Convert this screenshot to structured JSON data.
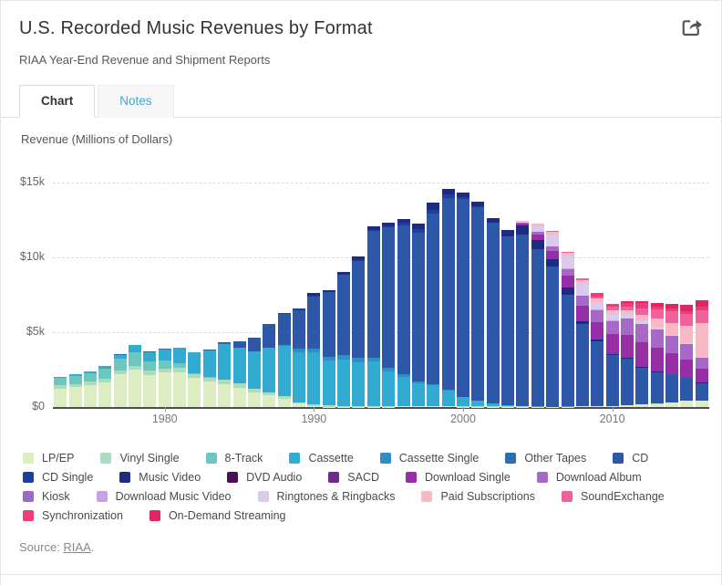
{
  "header": {
    "title": "U.S. Recorded Music Revenues by Format",
    "subtitle": "RIAA Year-End Revenue and Shipment Reports"
  },
  "tabs": [
    {
      "label": "Chart",
      "active": true
    },
    {
      "label": "Notes",
      "active": false
    }
  ],
  "icons": {
    "share": "share-export-arrow"
  },
  "axis": {
    "y_title": "Revenue (Millions of Dollars)",
    "y_ticks": [
      {
        "label": "$15k",
        "value": 15000
      },
      {
        "label": "$10k",
        "value": 10000
      },
      {
        "label": "$5k",
        "value": 5000
      },
      {
        "label": "$0",
        "value": 0
      }
    ],
    "x_ticks": [
      1980,
      1990,
      2000,
      2010
    ]
  },
  "chart_data": {
    "type": "bar",
    "stacked": true,
    "title": "U.S. Recorded Music Revenues by Format",
    "ylabel": "Revenue (Millions of Dollars)",
    "ylim": [
      0,
      15000
    ],
    "grid": "horizontal-dashed",
    "legend_position": "bottom",
    "x": [
      1973,
      1974,
      1975,
      1976,
      1977,
      1978,
      1979,
      1980,
      1981,
      1982,
      1983,
      1984,
      1985,
      1986,
      1987,
      1988,
      1989,
      1990,
      1991,
      1992,
      1993,
      1994,
      1995,
      1996,
      1997,
      1998,
      1999,
      2000,
      2001,
      2002,
      2003,
      2004,
      2005,
      2006,
      2007,
      2008,
      2009,
      2010,
      2011,
      2012,
      2013,
      2014,
      2015,
      2016
    ],
    "series": [
      {
        "name": "LP/EP",
        "color": "#dcedc1",
        "values": [
          1246,
          1356,
          1485,
          1663,
          2195,
          2473,
          2136,
          2290,
          2342,
          1925,
          1689,
          1549,
          1281,
          983,
          793,
          532,
          220,
          86,
          29,
          14,
          11,
          18,
          25,
          37,
          33,
          34,
          32,
          28,
          27,
          21,
          22,
          19,
          14,
          16,
          23,
          57,
          60,
          89,
          119,
          163,
          211,
          315,
          422,
          430
        ]
      },
      {
        "name": "Vinyl Single",
        "color": "#aadcc0",
        "values": [
          190,
          194,
          212,
          245,
          245,
          260,
          275,
          269,
          256,
          283,
          269,
          299,
          281,
          228,
          203,
          180,
          116,
          94,
          64,
          66,
          51,
          47,
          47,
          48,
          36,
          26,
          28,
          26,
          31,
          25,
          22,
          19,
          13,
          11,
          7,
          5,
          3,
          2,
          3,
          3,
          4,
          6,
          6,
          5
        ]
      },
      {
        "name": "8-Track",
        "color": "#6cc7c0",
        "values": [
          489,
          549,
          583,
          678,
          811,
          948,
          670,
          526,
          309,
          49,
          28,
          6,
          0,
          0,
          0,
          0,
          0,
          0,
          0,
          0,
          0,
          0,
          0,
          0,
          0,
          0,
          0,
          0,
          0,
          0,
          0,
          0,
          0,
          0,
          0,
          0,
          0,
          0,
          0,
          0,
          0,
          0,
          0,
          0
        ]
      },
      {
        "name": "Cassette",
        "color": "#32abd2",
        "values": [
          76,
          87,
          99,
          146,
          250,
          450,
          605,
          776,
          1063,
          1385,
          1811,
          2384,
          2412,
          2500,
          2960,
          3385,
          3346,
          3472,
          3020,
          3116,
          2916,
          2976,
          2304,
          1905,
          1523,
          1420,
          1062,
          626,
          363,
          210,
          108,
          24,
          13,
          4,
          3,
          1,
          0,
          0,
          0,
          0,
          0,
          0,
          0,
          0
        ]
      },
      {
        "name": "Cassette Single",
        "color": "#2f8fc4",
        "values": [
          0,
          0,
          0,
          0,
          0,
          0,
          0,
          0,
          0,
          0,
          0,
          0,
          0,
          0,
          14,
          57,
          195,
          258,
          230,
          299,
          299,
          275,
          236,
          189,
          133,
          62,
          48,
          13,
          6,
          5,
          0,
          0,
          0,
          0,
          0,
          0,
          0,
          0,
          0,
          0,
          0,
          0,
          0,
          0
        ]
      },
      {
        "name": "Other Tapes",
        "color": "#2c6fae",
        "values": [
          10,
          12,
          13,
          15,
          18,
          20,
          15,
          14,
          13,
          10,
          8,
          6,
          5,
          4,
          4,
          5,
          4,
          4,
          0,
          0,
          0,
          0,
          0,
          0,
          0,
          0,
          0,
          0,
          0,
          0,
          0,
          0,
          0,
          0,
          0,
          0,
          0,
          0,
          0,
          0,
          0,
          0,
          0,
          0
        ]
      },
      {
        "name": "CD",
        "color": "#2d57a7",
        "values": [
          0,
          0,
          0,
          0,
          0,
          0,
          0,
          0,
          0,
          0,
          17,
          103,
          390,
          930,
          1594,
          2090,
          2588,
          3452,
          4338,
          5327,
          6511,
          8465,
          9377,
          9935,
          9915,
          11416,
          12816,
          13215,
          12909,
          12044,
          11233,
          11447,
          10520,
          9373,
          7452,
          5471,
          4319,
          3389,
          3101,
          2485,
          2122,
          1854,
          1522,
          1175
        ]
      },
      {
        "name": "CD Single",
        "color": "#1e3f9c",
        "values": [
          0,
          0,
          0,
          0,
          0,
          0,
          0,
          0,
          0,
          0,
          0,
          0,
          0,
          0,
          0,
          10,
          116,
          86,
          35,
          45,
          46,
          56,
          111,
          184,
          273,
          213,
          222,
          143,
          79,
          20,
          17,
          15,
          11,
          8,
          12,
          7,
          3,
          2,
          2,
          1,
          0,
          0,
          0,
          0
        ]
      },
      {
        "name": "Music Video",
        "color": "#1f2a83",
        "values": [
          0,
          0,
          0,
          0,
          0,
          0,
          0,
          0,
          0,
          0,
          0,
          0,
          0,
          0,
          0,
          0,
          0,
          172,
          118,
          157,
          213,
          231,
          220,
          236,
          323,
          508,
          377,
          282,
          329,
          288,
          400,
          607,
          602,
          451,
          485,
          218,
          150,
          88,
          86,
          54,
          47,
          41,
          30,
          15
        ]
      },
      {
        "name": "DVD Audio",
        "color": "#461157",
        "values": [
          0,
          0,
          0,
          0,
          0,
          0,
          0,
          0,
          0,
          0,
          0,
          0,
          0,
          0,
          0,
          0,
          0,
          0,
          0,
          0,
          0,
          0,
          0,
          0,
          0,
          0,
          0,
          0,
          6,
          9,
          9,
          8,
          5,
          3,
          2,
          0,
          0,
          0,
          0,
          0,
          0,
          0,
          0,
          0
        ]
      },
      {
        "name": "SACD",
        "color": "#6e2b8a",
        "values": [
          0,
          0,
          0,
          0,
          0,
          0,
          0,
          0,
          0,
          0,
          0,
          0,
          0,
          0,
          0,
          0,
          0,
          0,
          0,
          0,
          0,
          0,
          0,
          0,
          0,
          0,
          0,
          0,
          0,
          0,
          26,
          16,
          11,
          7,
          4,
          0,
          0,
          0,
          0,
          0,
          0,
          0,
          0,
          0
        ]
      },
      {
        "name": "Download Single",
        "color": "#962fa5",
        "values": [
          0,
          0,
          0,
          0,
          0,
          0,
          0,
          0,
          0,
          0,
          0,
          0,
          0,
          0,
          0,
          0,
          0,
          0,
          0,
          0,
          0,
          0,
          0,
          0,
          0,
          0,
          0,
          0,
          0,
          0,
          0,
          138,
          363,
          581,
          801,
          1029,
          1160,
          1311,
          1505,
          1625,
          1572,
          1408,
          1223,
          919
        ]
      },
      {
        "name": "Download Album",
        "color": "#a768c8",
        "values": [
          0,
          0,
          0,
          0,
          0,
          0,
          0,
          0,
          0,
          0,
          0,
          0,
          0,
          0,
          0,
          0,
          0,
          0,
          0,
          0,
          0,
          0,
          0,
          0,
          0,
          0,
          0,
          0,
          0,
          0,
          0,
          46,
          136,
          276,
          425,
          635,
          771,
          872,
          1086,
          1215,
          1232,
          1113,
          1002,
          752
        ]
      },
      {
        "name": "Kiosk",
        "color": "#9c6cc0",
        "values": [
          0,
          0,
          0,
          0,
          0,
          0,
          0,
          0,
          0,
          0,
          0,
          0,
          0,
          0,
          0,
          0,
          0,
          0,
          0,
          0,
          0,
          0,
          0,
          0,
          0,
          0,
          0,
          0,
          0,
          0,
          0,
          0,
          2,
          4,
          5,
          3,
          2,
          2,
          2,
          2,
          2,
          2,
          1,
          1
        ]
      },
      {
        "name": "Download Music Video",
        "color": "#c9a3db",
        "values": [
          0,
          0,
          0,
          0,
          0,
          0,
          0,
          0,
          0,
          0,
          0,
          0,
          0,
          0,
          0,
          0,
          0,
          0,
          0,
          0,
          0,
          0,
          0,
          0,
          0,
          0,
          0,
          0,
          0,
          0,
          0,
          0,
          0,
          21,
          31,
          38,
          35,
          31,
          30,
          26,
          21,
          16,
          12,
          8
        ]
      },
      {
        "name": "Ringtones & Ringbacks",
        "color": "#dccaec",
        "values": [
          0,
          0,
          0,
          0,
          0,
          0,
          0,
          0,
          0,
          0,
          0,
          0,
          0,
          0,
          0,
          0,
          0,
          0,
          0,
          0,
          0,
          0,
          0,
          0,
          0,
          0,
          0,
          0,
          0,
          0,
          0,
          68,
          422,
          774,
          872,
          816,
          542,
          448,
          277,
          167,
          98,
          66,
          55,
          37
        ]
      },
      {
        "name": "Paid Subscriptions",
        "color": "#f8b8c4",
        "values": [
          0,
          0,
          0,
          0,
          0,
          0,
          0,
          0,
          0,
          0,
          0,
          0,
          0,
          0,
          0,
          0,
          0,
          0,
          0,
          0,
          0,
          0,
          0,
          0,
          0,
          0,
          0,
          0,
          0,
          0,
          0,
          37,
          149,
          206,
          201,
          221,
          212,
          212,
          241,
          400,
          628,
          799,
          1157,
          2258
        ]
      },
      {
        "name": "SoundExchange",
        "color": "#f2619e",
        "values": [
          0,
          0,
          0,
          0,
          0,
          0,
          0,
          0,
          0,
          0,
          0,
          0,
          0,
          0,
          0,
          0,
          0,
          0,
          0,
          0,
          0,
          0,
          0,
          0,
          0,
          0,
          0,
          0,
          0,
          0,
          0,
          7,
          20,
          31,
          36,
          100,
          156,
          249,
          292,
          462,
          590,
          773,
          803,
          884
        ]
      },
      {
        "name": "Synchronization",
        "color": "#f03d78",
        "values": [
          0,
          0,
          0,
          0,
          0,
          0,
          0,
          0,
          0,
          0,
          0,
          0,
          0,
          0,
          0,
          0,
          0,
          0,
          0,
          0,
          0,
          0,
          0,
          0,
          0,
          0,
          0,
          0,
          0,
          0,
          0,
          0,
          0,
          0,
          0,
          0,
          188,
          190,
          197,
          334,
          190,
          189,
          203,
          208
        ]
      },
      {
        "name": "On-Demand Streaming",
        "color": "#de2663",
        "values": [
          0,
          0,
          0,
          0,
          0,
          0,
          0,
          0,
          0,
          0,
          0,
          0,
          0,
          0,
          0,
          0,
          0,
          0,
          0,
          0,
          0,
          0,
          0,
          0,
          0,
          0,
          0,
          0,
          0,
          0,
          0,
          0,
          0,
          0,
          0,
          0,
          0,
          0,
          114,
          171,
          220,
          295,
          385,
          469
        ]
      }
    ]
  },
  "legend": {
    "rows": [
      [
        "LP/EP",
        "Vinyl Single",
        "8-Track",
        "Cassette",
        "Cassette Single",
        "Other Tapes",
        "CD"
      ],
      [
        "CD Single",
        "Music Video",
        "DVD Audio",
        "SACD",
        "Download Single",
        "Download Album"
      ],
      [
        "Kiosk",
        "Download Music Video",
        "Ringtones & Ringbacks",
        "Paid Subscriptions",
        "SoundExchange"
      ],
      [
        "Synchronization",
        "On-Demand Streaming"
      ]
    ]
  },
  "source": {
    "prefix": "Source: ",
    "link_text": "RIAA",
    "suffix": "."
  }
}
